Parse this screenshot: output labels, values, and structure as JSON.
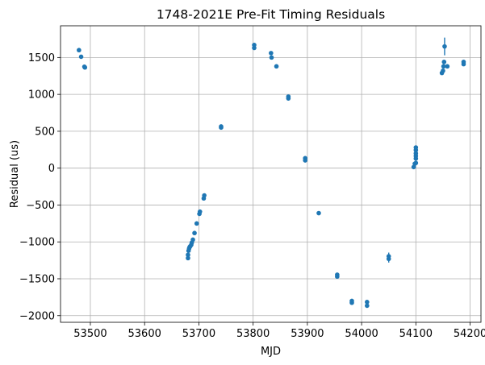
{
  "chart_data": {
    "type": "scatter",
    "title": "1748-2021E Pre-Fit Timing Residuals",
    "xlabel": "MJD",
    "ylabel": "Residual (us)",
    "xlim": [
      53445,
      54220
    ],
    "ylim": [
      -2090,
      1930
    ],
    "xticks": [
      53500,
      53600,
      53700,
      53800,
      53900,
      54000,
      54100,
      54200
    ],
    "yticks": [
      -2000,
      -1500,
      -1000,
      -500,
      0,
      500,
      1000,
      1500
    ],
    "xtick_labels": [
      "53500",
      "53600",
      "53700",
      "53800",
      "53900",
      "54000",
      "54100",
      "54200"
    ],
    "ytick_labels": [
      "−2000",
      "−1500",
      "−1000",
      "−500",
      "0",
      "500",
      "1000",
      "1500"
    ],
    "grid": true,
    "marker_color": "#1f77b4",
    "points": [
      {
        "x": 53479,
        "y": 1600,
        "err": 20
      },
      {
        "x": 53483,
        "y": 1510,
        "err": 20
      },
      {
        "x": 53489,
        "y": 1375,
        "err": 20
      },
      {
        "x": 53490,
        "y": 1365,
        "err": 20
      },
      {
        "x": 53680,
        "y": -1220,
        "err": 20
      },
      {
        "x": 53680,
        "y": -1175,
        "err": 20
      },
      {
        "x": 53681,
        "y": -1120,
        "err": 20
      },
      {
        "x": 53682,
        "y": -1090,
        "err": 20
      },
      {
        "x": 53683,
        "y": -1070,
        "err": 20
      },
      {
        "x": 53684,
        "y": -1060,
        "err": 20
      },
      {
        "x": 53686,
        "y": -1040,
        "err": 20
      },
      {
        "x": 53687,
        "y": -1010,
        "err": 20
      },
      {
        "x": 53689,
        "y": -970,
        "err": 20
      },
      {
        "x": 53692,
        "y": -880,
        "err": 20
      },
      {
        "x": 53696,
        "y": -750,
        "err": 20
      },
      {
        "x": 53701,
        "y": -620,
        "err": 20
      },
      {
        "x": 53702,
        "y": -590,
        "err": 20
      },
      {
        "x": 53709,
        "y": -410,
        "err": 20
      },
      {
        "x": 53710,
        "y": -370,
        "err": 20
      },
      {
        "x": 53741,
        "y": 550,
        "err": 20
      },
      {
        "x": 53741,
        "y": 565,
        "err": 20
      },
      {
        "x": 53802,
        "y": 1630,
        "err": 20
      },
      {
        "x": 53802,
        "y": 1670,
        "err": 20
      },
      {
        "x": 53833,
        "y": 1560,
        "err": 20
      },
      {
        "x": 53834,
        "y": 1500,
        "err": 20
      },
      {
        "x": 53843,
        "y": 1380,
        "err": 20
      },
      {
        "x": 53865,
        "y": 970,
        "err": 20
      },
      {
        "x": 53865,
        "y": 945,
        "err": 20
      },
      {
        "x": 53896,
        "y": 135,
        "err": 20
      },
      {
        "x": 53896,
        "y": 105,
        "err": 20
      },
      {
        "x": 53921,
        "y": -610,
        "err": 20
      },
      {
        "x": 53955,
        "y": -1445,
        "err": 20
      },
      {
        "x": 53955,
        "y": -1470,
        "err": 20
      },
      {
        "x": 53982,
        "y": -1800,
        "err": 20
      },
      {
        "x": 53982,
        "y": -1825,
        "err": 20
      },
      {
        "x": 54010,
        "y": -1815,
        "err": 20
      },
      {
        "x": 54010,
        "y": -1865,
        "err": 20
      },
      {
        "x": 54050,
        "y": -1195,
        "err": 50
      },
      {
        "x": 54050,
        "y": -1230,
        "err": 50
      },
      {
        "x": 54096,
        "y": 15,
        "err": 20
      },
      {
        "x": 54098,
        "y": 60,
        "err": 20
      },
      {
        "x": 54100,
        "y": 70,
        "err": 20
      },
      {
        "x": 54100,
        "y": 130,
        "err": 20
      },
      {
        "x": 54100,
        "y": 165,
        "err": 20
      },
      {
        "x": 54100,
        "y": 200,
        "err": 20
      },
      {
        "x": 54100,
        "y": 245,
        "err": 20
      },
      {
        "x": 54100,
        "y": 280,
        "err": 20
      },
      {
        "x": 54148,
        "y": 1290,
        "err": 20
      },
      {
        "x": 54150,
        "y": 1320,
        "err": 20
      },
      {
        "x": 54151,
        "y": 1380,
        "err": 20
      },
      {
        "x": 54152,
        "y": 1440,
        "err": 20
      },
      {
        "x": 54153,
        "y": 1650,
        "err": 120
      },
      {
        "x": 54158,
        "y": 1380,
        "err": 20
      },
      {
        "x": 54188,
        "y": 1410,
        "err": 20
      },
      {
        "x": 54188,
        "y": 1440,
        "err": 20
      }
    ]
  }
}
